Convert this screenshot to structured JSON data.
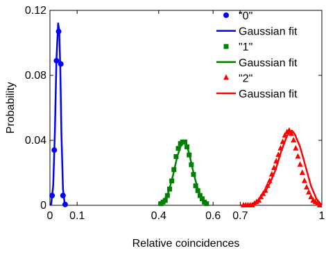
{
  "chart_data": {
    "type": "line",
    "xlabel": "Relative coincidences",
    "ylabel": "Probability",
    "xlim": [
      0,
      1
    ],
    "ylim": [
      0,
      0.12
    ],
    "xticks": [
      {
        "value": 0,
        "label": "0"
      },
      {
        "value": 0.1,
        "label": "0.1"
      },
      {
        "value": 0.4,
        "label": "0.4"
      },
      {
        "value": 0.6,
        "label": "0.6"
      },
      {
        "value": 0.7,
        "label": "0.7"
      },
      {
        "value": 1,
        "label": "1"
      }
    ],
    "yticks": [
      {
        "value": 0,
        "label": "0"
      },
      {
        "value": 0.04,
        "label": "0.04"
      },
      {
        "value": 0.08,
        "label": "0.08"
      },
      {
        "value": 0.12,
        "label": "0.12"
      }
    ],
    "grid": false,
    "legend_position": "top-right",
    "series": [
      {
        "name": "\"0\"",
        "kind": "markers",
        "marker": "circle",
        "color": "#0000ff",
        "x": [
          0.008,
          0.016,
          0.024,
          0.032,
          0.04,
          0.048,
          0.056
        ],
        "y": [
          0.006,
          0.034,
          0.089,
          0.107,
          0.087,
          0.006,
          0.0005
        ]
      },
      {
        "name": "Gaussian fit",
        "kind": "line",
        "color": "#0000ff",
        "x": [
          0.004,
          0.012,
          0.018,
          0.024,
          0.03,
          0.034,
          0.038,
          0.042,
          0.048,
          0.054,
          0.06
        ],
        "y": [
          0.0,
          0.012,
          0.045,
          0.09,
          0.112,
          0.108,
          0.085,
          0.045,
          0.01,
          0.001,
          0.0
        ]
      },
      {
        "name": "\"1\"",
        "kind": "markers",
        "marker": "square",
        "color": "#008000",
        "x": [
          0.408,
          0.416,
          0.424,
          0.432,
          0.44,
          0.448,
          0.456,
          0.464,
          0.472,
          0.48,
          0.488,
          0.496,
          0.504,
          0.512,
          0.52,
          0.528,
          0.536,
          0.544,
          0.552,
          0.56,
          0.568,
          0.576
        ],
        "y": [
          0.001,
          0.002,
          0.003,
          0.006,
          0.01,
          0.015,
          0.022,
          0.03,
          0.035,
          0.038,
          0.039,
          0.039,
          0.036,
          0.031,
          0.025,
          0.019,
          0.012,
          0.009,
          0.006,
          0.004,
          0.002,
          0.001
        ]
      },
      {
        "name": "Gaussian fit",
        "kind": "line",
        "color": "#008000",
        "x": [
          0.404,
          0.42,
          0.436,
          0.452,
          0.468,
          0.48,
          0.492,
          0.5,
          0.512,
          0.528,
          0.544,
          0.56,
          0.576
        ],
        "y": [
          0.0005,
          0.003,
          0.008,
          0.018,
          0.03,
          0.036,
          0.0395,
          0.039,
          0.032,
          0.02,
          0.01,
          0.004,
          0.001
        ]
      },
      {
        "name": "\"2\"",
        "kind": "markers",
        "marker": "triangle",
        "color": "#ff0000",
        "x": [
          0.712,
          0.72,
          0.728,
          0.736,
          0.744,
          0.752,
          0.76,
          0.768,
          0.776,
          0.784,
          0.792,
          0.8,
          0.808,
          0.816,
          0.824,
          0.832,
          0.84,
          0.848,
          0.856,
          0.864,
          0.872,
          0.88,
          0.888,
          0.896,
          0.904,
          0.912,
          0.92,
          0.928,
          0.936,
          0.944,
          0.952,
          0.96,
          0.968,
          0.976,
          0.984,
          0.992
        ],
        "y": [
          0.0,
          0.0,
          0.0,
          0.0,
          0.0,
          0.001,
          0.002,
          0.003,
          0.005,
          0.007,
          0.009,
          0.012,
          0.015,
          0.019,
          0.023,
          0.027,
          0.031,
          0.035,
          0.039,
          0.043,
          0.045,
          0.046,
          0.044,
          0.04,
          0.035,
          0.03,
          0.025,
          0.02,
          0.015,
          0.011,
          0.008,
          0.005,
          0.003,
          0.002,
          0.001,
          0.0
        ]
      },
      {
        "name": "Gaussian fit",
        "kind": "line",
        "color": "#ff0000",
        "x": [
          0.7,
          0.73,
          0.76,
          0.79,
          0.81,
          0.83,
          0.85,
          0.87,
          0.88,
          0.89,
          0.9,
          0.92,
          0.94,
          0.96,
          0.98,
          1.0
        ],
        "y": [
          0.0,
          0.0,
          0.002,
          0.008,
          0.014,
          0.022,
          0.033,
          0.042,
          0.045,
          0.046,
          0.044,
          0.036,
          0.024,
          0.012,
          0.004,
          0.0
        ]
      }
    ]
  }
}
